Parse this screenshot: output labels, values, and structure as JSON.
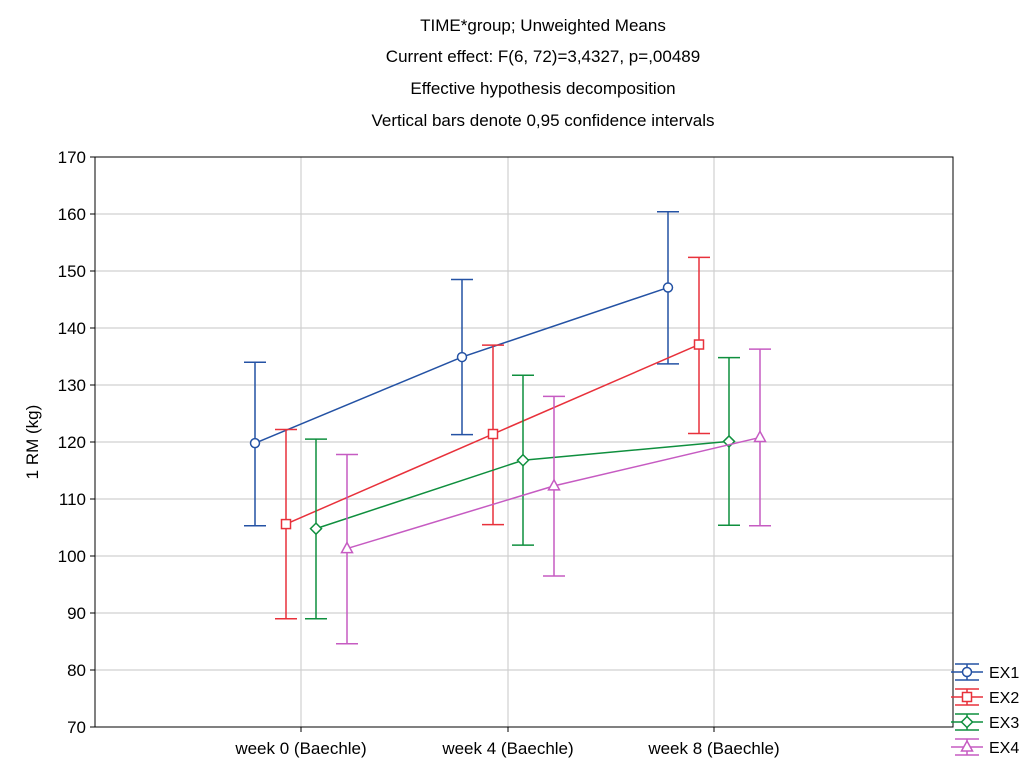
{
  "chart_data": {
    "type": "line",
    "title_lines": [
      "TIME*group; Unweighted Means",
      "Current effect: F(6, 72)=3,4327, p=,00489",
      "Effective hypothesis decomposition",
      "Vertical bars denote 0,95 confidence intervals"
    ],
    "xlabel": "",
    "ylabel": "1 RM (kg)",
    "categories": [
      "week 0 (Baechle)",
      "week 4 (Baechle)",
      "week 8 (Baechle)"
    ],
    "ylim": [
      70,
      170
    ],
    "yticks": [
      70,
      80,
      90,
      100,
      110,
      120,
      130,
      140,
      150,
      160,
      170
    ],
    "grid": true,
    "legend_position": "bottom-right",
    "series": [
      {
        "name": "EX1",
        "color": "#2452a4",
        "marker": "circle",
        "values": [
          119.8,
          134.9,
          147.1
        ],
        "ci_low": [
          105.3,
          121.3,
          133.7
        ],
        "ci_high": [
          134.0,
          148.5,
          160.4
        ]
      },
      {
        "name": "EX2",
        "color": "#e8313b",
        "marker": "square",
        "values": [
          105.6,
          121.4,
          137.1
        ],
        "ci_low": [
          89.0,
          105.5,
          121.5
        ],
        "ci_high": [
          122.2,
          137.0,
          152.4
        ]
      },
      {
        "name": "EX3",
        "color": "#0f8f3e",
        "marker": "diamond",
        "values": [
          104.8,
          116.8,
          120.1
        ],
        "ci_low": [
          89.0,
          101.9,
          105.4
        ],
        "ci_high": [
          120.5,
          131.7,
          134.8
        ]
      },
      {
        "name": "EX4",
        "color": "#c65bc2",
        "marker": "triangle",
        "values": [
          101.3,
          112.3,
          120.8
        ],
        "ci_low": [
          84.6,
          96.5,
          105.3
        ],
        "ci_high": [
          117.8,
          128.0,
          136.3
        ]
      }
    ]
  }
}
